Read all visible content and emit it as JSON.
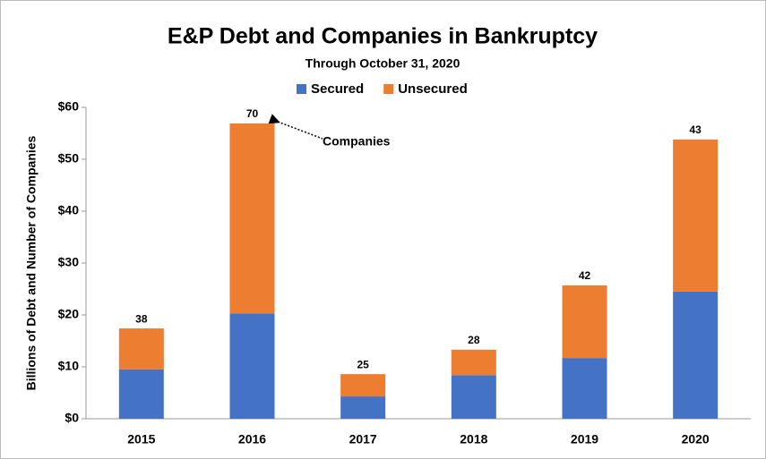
{
  "chart_data": {
    "type": "stacked_bar",
    "title": "E&P Debt and Companies in  Bankruptcy",
    "subtitle": "Through October 31, 2020",
    "ylabel": "Billions of Debt and Number of Companies",
    "categories": [
      "2015",
      "2016",
      "2017",
      "2018",
      "2019",
      "2020"
    ],
    "series": [
      {
        "name": "Secured",
        "color": "#4472c4",
        "values": [
          9.5,
          20.3,
          4.3,
          8.4,
          11.7,
          24.5
        ]
      },
      {
        "name": "Unsecured",
        "color": "#ed7d31",
        "values": [
          7.9,
          36.6,
          4.3,
          4.9,
          14.0,
          29.3
        ]
      }
    ],
    "companies": [
      38,
      70,
      25,
      28,
      42,
      43
    ],
    "annotation": "Companies",
    "ylim": [
      0,
      60
    ],
    "yticks": [
      {
        "value": 0,
        "label": "$0"
      },
      {
        "value": 10,
        "label": "$10"
      },
      {
        "value": 20,
        "label": "$20"
      },
      {
        "value": 30,
        "label": "$30"
      },
      {
        "value": 40,
        "label": "$40"
      },
      {
        "value": 50,
        "label": "$50"
      },
      {
        "value": 60,
        "label": "$60"
      }
    ],
    "grid": false,
    "legend": "top"
  }
}
